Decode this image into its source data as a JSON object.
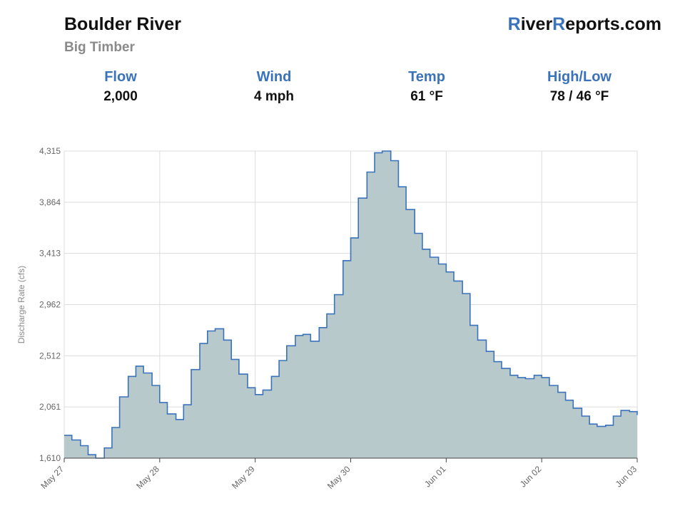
{
  "header": {
    "river": "Boulder River",
    "station": "Big Timber",
    "logo": {
      "r1": "R",
      "t1": "iver",
      "r2": "R",
      "t2": "eports.com"
    }
  },
  "stats": [
    {
      "label": "Flow",
      "value": "2,000"
    },
    {
      "label": "Wind",
      "value": "4 mph"
    },
    {
      "label": "Temp",
      "value": "61 °F"
    },
    {
      "label": "High/Low",
      "value": "78 / 46 °F"
    }
  ],
  "colors": {
    "line": "#3a72bb",
    "fill": "#b8c9cc",
    "grid": "#dddddd",
    "accent": "#3a72bb"
  },
  "chart_data": {
    "type": "area",
    "step": true,
    "ylabel": "Discharge Rate (cfs)",
    "ylim": [
      1610,
      4315
    ],
    "yticks": [
      "1,610",
      "2,061",
      "2,512",
      "2,962",
      "3,413",
      "3,864",
      "4,315"
    ],
    "xticks": [
      "May 27",
      "May 28",
      "May 29",
      "May 30",
      "Jun 01",
      "Jun 02",
      "Jun 03"
    ],
    "x_unit": "days after May 27 00:00",
    "grid": true,
    "legend": "none",
    "x": [
      0,
      0.08,
      0.17,
      0.25,
      0.33,
      0.42,
      0.5,
      0.58,
      0.67,
      0.75,
      0.83,
      0.92,
      1.0,
      1.08,
      1.17,
      1.25,
      1.33,
      1.42,
      1.5,
      1.58,
      1.67,
      1.75,
      1.83,
      1.92,
      2.0,
      2.08,
      2.17,
      2.25,
      2.33,
      2.42,
      2.5,
      2.58,
      2.67,
      2.75,
      2.83,
      2.92,
      3.0,
      3.08,
      3.17,
      3.25,
      3.33,
      3.42,
      3.5,
      3.58,
      3.67,
      3.75,
      3.83,
      3.92,
      4.0,
      4.08,
      4.17,
      4.25,
      4.33,
      4.42,
      4.5,
      4.58,
      4.67,
      4.75,
      4.83,
      4.92,
      5.0,
      5.08,
      5.17,
      5.25,
      5.33,
      5.42,
      5.5,
      5.58,
      5.67,
      5.75,
      5.83,
      5.92,
      6.0
    ],
    "y": [
      1810,
      1770,
      1720,
      1640,
      1610,
      1700,
      1880,
      2150,
      2330,
      2420,
      2360,
      2250,
      2100,
      2000,
      1950,
      2080,
      2390,
      2620,
      2730,
      2750,
      2650,
      2480,
      2350,
      2230,
      2170,
      2210,
      2330,
      2470,
      2600,
      2690,
      2700,
      2640,
      2760,
      2880,
      3050,
      3350,
      3550,
      3900,
      4130,
      4300,
      4315,
      4230,
      4000,
      3800,
      3590,
      3450,
      3380,
      3320,
      3250,
      3170,
      3060,
      2780,
      2650,
      2550,
      2460,
      2400,
      2340,
      2320,
      2310,
      2340,
      2320,
      2250,
      2190,
      2120,
      2050,
      1980,
      1910,
      1890,
      1900,
      1980,
      2030,
      2020,
      1990
    ]
  }
}
